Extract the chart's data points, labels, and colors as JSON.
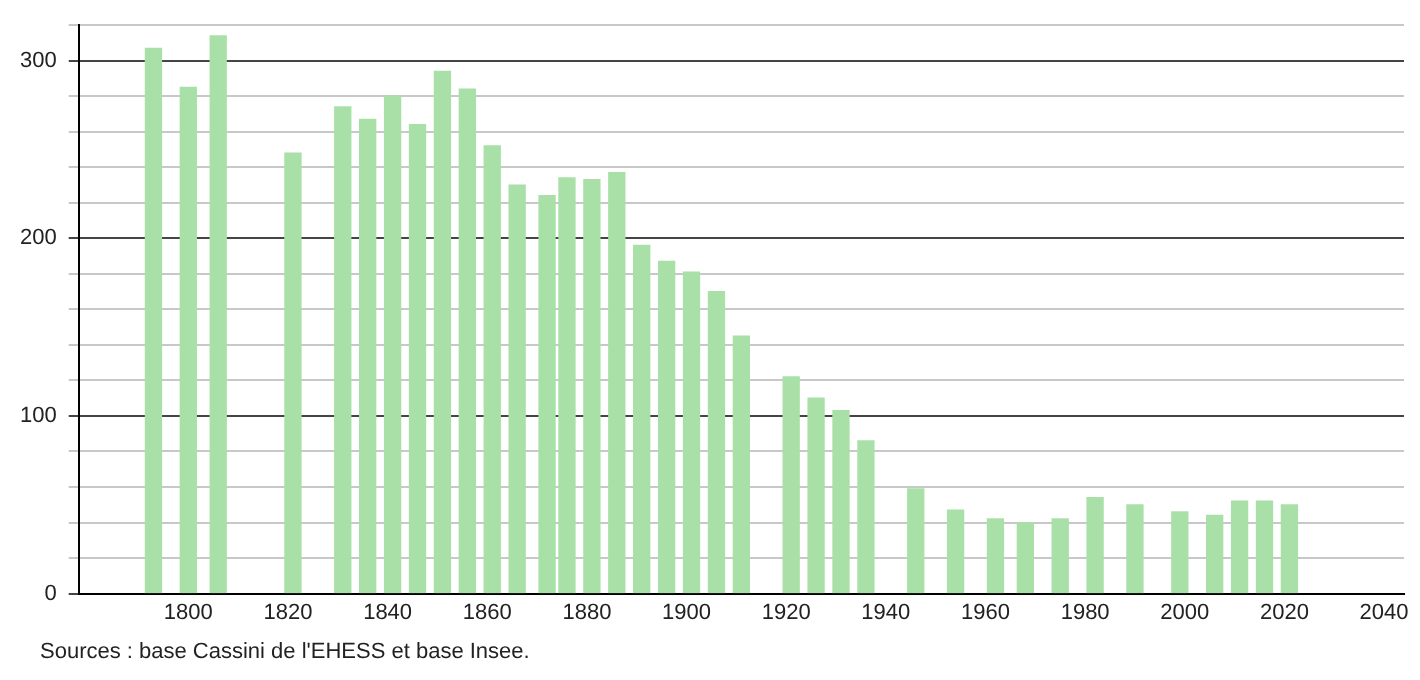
{
  "chart_data": {
    "type": "bar",
    "x": [
      1793,
      1800,
      1806,
      1821,
      1831,
      1836,
      1841,
      1846,
      1851,
      1856,
      1861,
      1866,
      1872,
      1876,
      1881,
      1886,
      1891,
      1896,
      1901,
      1906,
      1911,
      1921,
      1926,
      1931,
      1936,
      1946,
      1954,
      1962,
      1968,
      1975,
      1982,
      1990,
      1999,
      2006,
      2011,
      2016,
      2021
    ],
    "values": [
      307,
      285,
      314,
      248,
      274,
      267,
      280,
      264,
      294,
      284,
      252,
      230,
      224,
      234,
      233,
      237,
      196,
      187,
      181,
      170,
      145,
      122,
      110,
      103,
      86,
      59,
      47,
      42,
      40,
      42,
      54,
      50,
      46,
      44,
      52,
      52,
      50
    ],
    "color": "#a8e0a8",
    "xlim": [
      1778,
      2044
    ],
    "xticks": [
      1800,
      1820,
      1840,
      1860,
      1880,
      1900,
      1920,
      1940,
      1960,
      1980,
      2000,
      2020,
      2040
    ],
    "ylim": [
      0,
      320
    ],
    "yticks": [
      0,
      {
        "value": 20,
        "label": null
      },
      {
        "value": 40,
        "label": null
      },
      {
        "value": 60,
        "label": null
      },
      {
        "value": 80,
        "label": null
      },
      100,
      {
        "value": 120,
        "label": null
      },
      {
        "value": 140,
        "label": null
      },
      {
        "value": 160,
        "label": null
      },
      {
        "value": 180,
        "label": null
      },
      200,
      {
        "value": 220,
        "label": null
      },
      {
        "value": 240,
        "label": null
      },
      {
        "value": 260,
        "label": null
      },
      {
        "value": 280,
        "label": null
      },
      300,
      {
        "value": 320,
        "label": null
      }
    ],
    "grid": "y",
    "annotations": [
      "Sources : base Cassini de l'EHESS et base Insee."
    ]
  }
}
